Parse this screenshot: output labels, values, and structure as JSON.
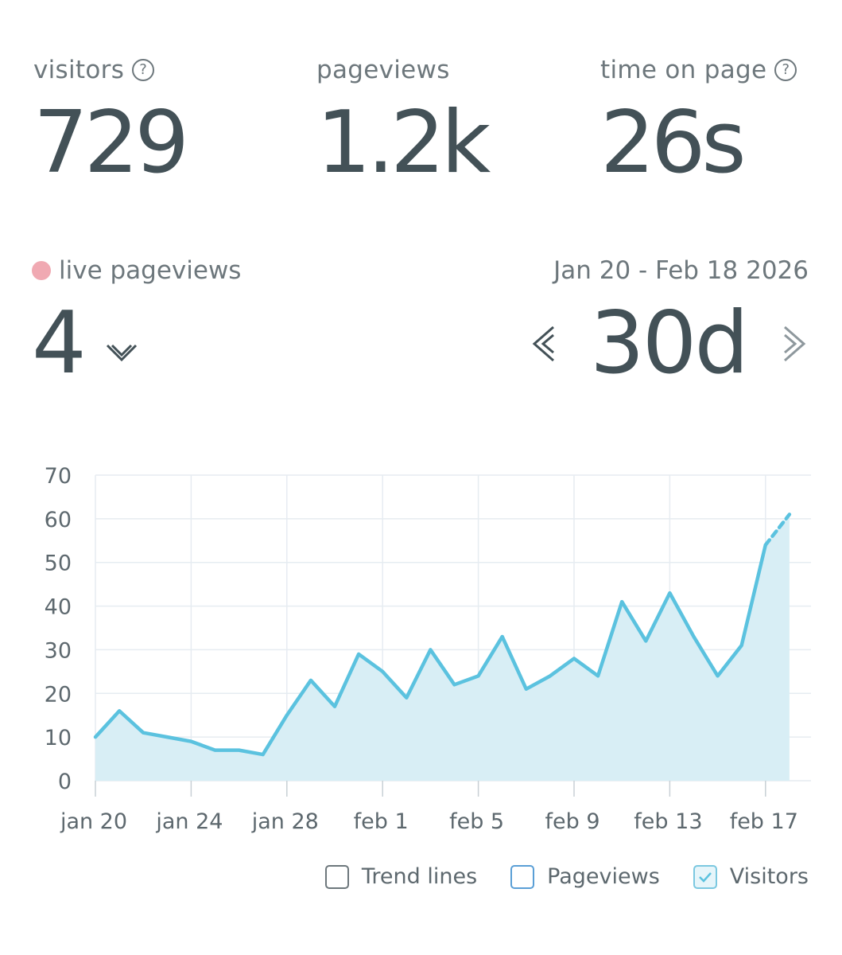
{
  "stats": {
    "visitors": {
      "label": "visitors",
      "value": "729"
    },
    "pageviews": {
      "label": "pageviews",
      "value": "1.2k"
    },
    "time_on_page": {
      "label": "time on page",
      "value": "26s"
    },
    "help_glyph": "?"
  },
  "live": {
    "label": "live pageviews",
    "value": "4",
    "dot_color": "#f0a9b2"
  },
  "range": {
    "dates": "Jan 20 - Feb 18 2026",
    "value": "30d"
  },
  "legend": {
    "trend_lines": "Trend lines",
    "pageviews": "Pageviews",
    "visitors": "Visitors"
  },
  "colors": {
    "line": "#5bc2df",
    "fill": "#d8eef5",
    "grid": "#e6ecf1",
    "text": "#435157"
  },
  "chart_data": {
    "type": "area",
    "ylim": [
      0,
      70
    ],
    "yticks": [
      0,
      10,
      20,
      30,
      40,
      50,
      60,
      70
    ],
    "xticks": [
      "jan 20",
      "jan 24",
      "jan 28",
      "feb 1",
      "feb 5",
      "feb 9",
      "feb 13",
      "feb 17"
    ],
    "x": [
      "jan 20",
      "jan 21",
      "jan 22",
      "jan 23",
      "jan 24",
      "jan 25",
      "jan 26",
      "jan 27",
      "jan 28",
      "jan 29",
      "jan 30",
      "jan 31",
      "feb 1",
      "feb 2",
      "feb 3",
      "feb 4",
      "feb 5",
      "feb 6",
      "feb 7",
      "feb 8",
      "feb 9",
      "feb 10",
      "feb 11",
      "feb 12",
      "feb 13",
      "feb 14",
      "feb 15",
      "feb 16",
      "feb 17",
      "feb 18"
    ],
    "series": [
      {
        "name": "Visitors",
        "values": [
          10,
          16,
          11,
          10,
          9,
          7,
          7,
          6,
          15,
          23,
          17,
          29,
          25,
          19,
          30,
          22,
          24,
          33,
          21,
          24,
          28,
          24,
          41,
          32,
          43,
          33,
          24,
          31,
          54,
          61
        ]
      }
    ]
  }
}
